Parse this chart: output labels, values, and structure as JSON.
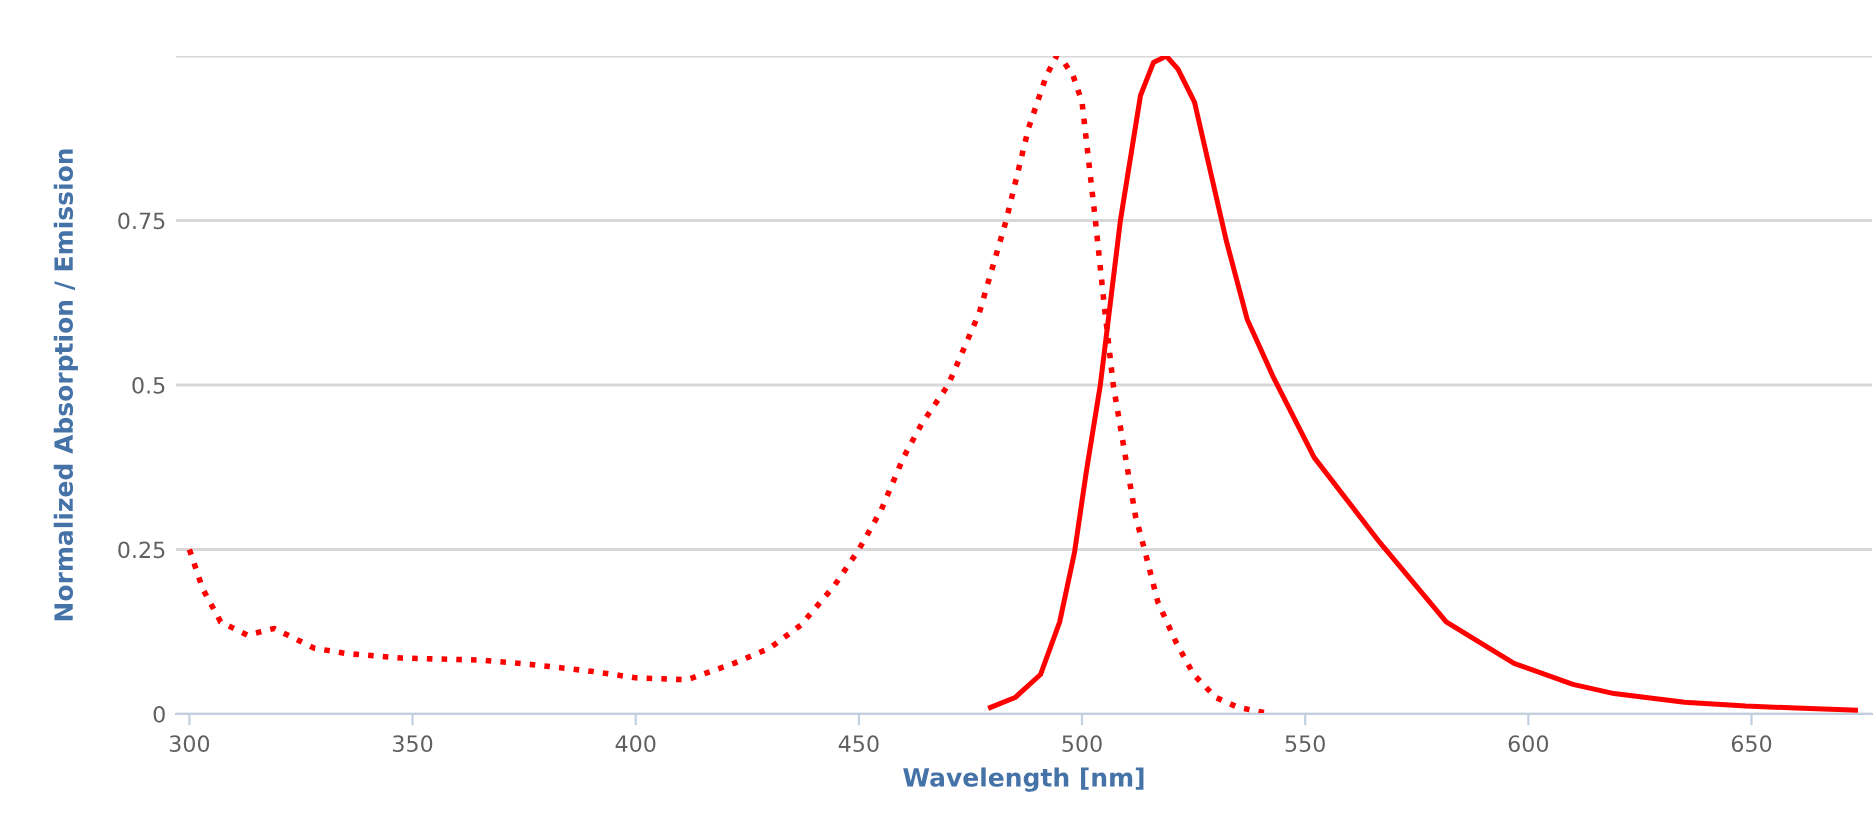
{
  "chart_data": {
    "type": "line",
    "xlabel": "Wavelength [nm]",
    "ylabel": "Normalized Absorption / Emission",
    "xlim": [
      297,
      677
    ],
    "xticks": [
      300,
      350,
      400,
      450,
      500,
      550,
      600,
      650
    ],
    "ylim": [
      0,
      1
    ],
    "yticks": [
      0,
      0.25,
      0.5,
      0.75,
      {
        "value": 1,
        "label": null
      }
    ],
    "grid": "y",
    "legend": false,
    "series": [
      {
        "color": "#ff0000",
        "line_style": "dotted",
        "x": [
          300,
          303,
          307,
          313,
          319,
          322,
          328,
          335,
          347.5,
          365,
          377,
          390,
          400,
          411.5,
          422,
          430,
          437,
          444.5,
          450,
          455,
          460,
          464,
          470,
          477,
          483,
          488,
          492,
          494.3,
          496,
          498,
          500,
          503,
          505,
          507,
          510,
          512,
          514,
          517,
          521,
          525,
          530,
          535,
          541
        ],
        "values": [
          0.25,
          0.19,
          0.14,
          0.12,
          0.13,
          0.12,
          0.1,
          0.092,
          0.085,
          0.082,
          0.075,
          0.065,
          0.055,
          0.052,
          0.077,
          0.1,
          0.135,
          0.195,
          0.25,
          0.31,
          0.39,
          0.44,
          0.5,
          0.61,
          0.75,
          0.89,
          0.97,
          1.0,
          0.99,
          0.97,
          0.93,
          0.75,
          0.62,
          0.5,
          0.38,
          0.3,
          0.25,
          0.17,
          0.11,
          0.06,
          0.025,
          0.01,
          0.002
        ]
      },
      {
        "color": "#ff0000",
        "line_style": "solid",
        "x": [
          479.5,
          485,
          490.7,
          495,
          498.3,
          501,
          504.1,
          508.6,
          513.1,
          516,
          518.9,
          521.5,
          525.2,
          532.3,
          537,
          543,
          552,
          566.8,
          581.6,
          596.8,
          610,
          619.2,
          635,
          648.7,
          660,
          673.3
        ],
        "values": [
          0.01,
          0.025,
          0.06,
          0.14,
          0.245,
          0.37,
          0.5,
          0.75,
          0.94,
          0.99,
          1.0,
          0.98,
          0.93,
          0.72,
          0.6,
          0.51,
          0.39,
          0.26,
          0.14,
          0.077,
          0.045,
          0.031,
          0.018,
          0.012,
          0.009,
          0.006
        ]
      }
    ]
  }
}
